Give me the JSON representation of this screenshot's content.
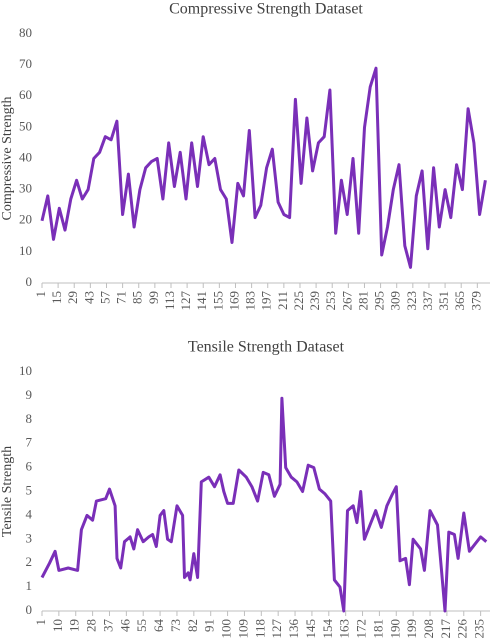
{
  "chart_data": [
    {
      "type": "line",
      "title": "Compressive Strength Dataset",
      "y_label": "Compressive Strength",
      "color": "#7a2fb8",
      "x": [
        1,
        6,
        11,
        16,
        21,
        26,
        31,
        36,
        41,
        46,
        51,
        56,
        61,
        66,
        71,
        76,
        81,
        86,
        91,
        96,
        101,
        106,
        111,
        116,
        121,
        126,
        131,
        136,
        141,
        146,
        151,
        156,
        161,
        166,
        171,
        176,
        181,
        186,
        191,
        196,
        201,
        206,
        211,
        216,
        221,
        226,
        231,
        236,
        241,
        246,
        251,
        256,
        261,
        266,
        271,
        276,
        281,
        286,
        291,
        296,
        301,
        306,
        311,
        316,
        321,
        326,
        331,
        336,
        341,
        346,
        351,
        356,
        361,
        366,
        371,
        376,
        381,
        386
      ],
      "values": [
        20,
        28,
        14,
        24,
        17,
        27,
        33,
        27,
        30,
        40,
        42,
        47,
        46,
        52,
        22,
        35,
        18,
        30,
        37,
        39,
        40,
        27,
        45,
        31,
        42,
        27,
        45,
        31,
        47,
        38,
        40,
        30,
        27,
        13,
        32,
        28,
        49,
        21,
        25,
        37,
        43,
        26,
        22,
        21,
        59,
        32,
        53,
        36,
        45,
        47,
        62,
        16,
        33,
        22,
        40,
        16,
        50,
        63,
        69,
        9,
        18,
        30,
        38,
        12,
        5,
        28,
        36,
        11,
        37,
        18,
        30,
        21,
        38,
        30,
        56,
        45,
        22,
        33
      ],
      "xlim": [
        1,
        390
      ],
      "xticks": [
        1,
        15,
        29,
        43,
        57,
        71,
        85,
        99,
        113,
        127,
        141,
        155,
        169,
        183,
        197,
        211,
        225,
        239,
        253,
        267,
        281,
        295,
        309,
        323,
        337,
        351,
        365,
        379
      ],
      "ylim": [
        0,
        80
      ],
      "yticks": [
        0,
        10,
        20,
        30,
        40,
        50,
        60,
        70,
        80
      ]
    },
    {
      "type": "line",
      "title": "Tensile Strength Dataset",
      "y_label": "Tensile Strength",
      "color": "#7a2fb8",
      "x": [
        1,
        5,
        8,
        10,
        15,
        20,
        22,
        25,
        28,
        30,
        35,
        37,
        40,
        41,
        43,
        45,
        48,
        50,
        52,
        55,
        58,
        60,
        62,
        64,
        66,
        68,
        70,
        73,
        76,
        77,
        79,
        80,
        82,
        84,
        86,
        90,
        93,
        96,
        98,
        100,
        103,
        106,
        110,
        113,
        116,
        119,
        122,
        125,
        128,
        129,
        131,
        134,
        137,
        140,
        143,
        146,
        149,
        152,
        155,
        157,
        160,
        162,
        164,
        167,
        169,
        171,
        173,
        176,
        179,
        182,
        185,
        188,
        190,
        192,
        195,
        197,
        199,
        203,
        205,
        208,
        212,
        214,
        216,
        218,
        221,
        223,
        226,
        229,
        232,
        235,
        238
      ],
      "values": [
        1.4,
        2.0,
        2.5,
        1.7,
        1.8,
        1.7,
        3.4,
        4.0,
        3.8,
        4.6,
        4.7,
        5.1,
        4.4,
        2.2,
        1.8,
        2.9,
        3.1,
        2.6,
        3.4,
        2.9,
        3.1,
        3.2,
        2.7,
        4.0,
        4.2,
        3.0,
        2.9,
        4.4,
        4.0,
        1.4,
        1.6,
        1.3,
        2.4,
        1.4,
        5.4,
        5.6,
        5.2,
        5.7,
        5.0,
        4.5,
        4.5,
        5.9,
        5.6,
        5.2,
        4.6,
        5.8,
        5.7,
        4.8,
        5.3,
        8.9,
        6.0,
        5.6,
        5.4,
        5.0,
        6.1,
        6.0,
        5.1,
        4.9,
        4.6,
        1.3,
        1.0,
        0.0,
        4.2,
        4.4,
        3.7,
        5.0,
        3.0,
        3.6,
        4.2,
        3.5,
        4.4,
        4.9,
        5.2,
        2.1,
        2.2,
        1.1,
        3.0,
        2.6,
        1.7,
        4.2,
        3.6,
        1.8,
        0.0,
        3.3,
        3.2,
        2.2,
        4.1,
        2.5,
        2.8,
        3.1,
        2.9
      ],
      "xlim": [
        1,
        240
      ],
      "xticks": [
        1,
        10,
        19,
        28,
        37,
        46,
        55,
        64,
        73,
        82,
        91,
        100,
        109,
        118,
        127,
        136,
        145,
        154,
        163,
        172,
        181,
        190,
        199,
        208,
        217,
        226,
        235
      ],
      "ylim": [
        0,
        10
      ],
      "yticks": [
        0,
        1,
        2,
        3,
        4,
        5,
        6,
        7,
        8,
        9,
        10
      ]
    }
  ]
}
